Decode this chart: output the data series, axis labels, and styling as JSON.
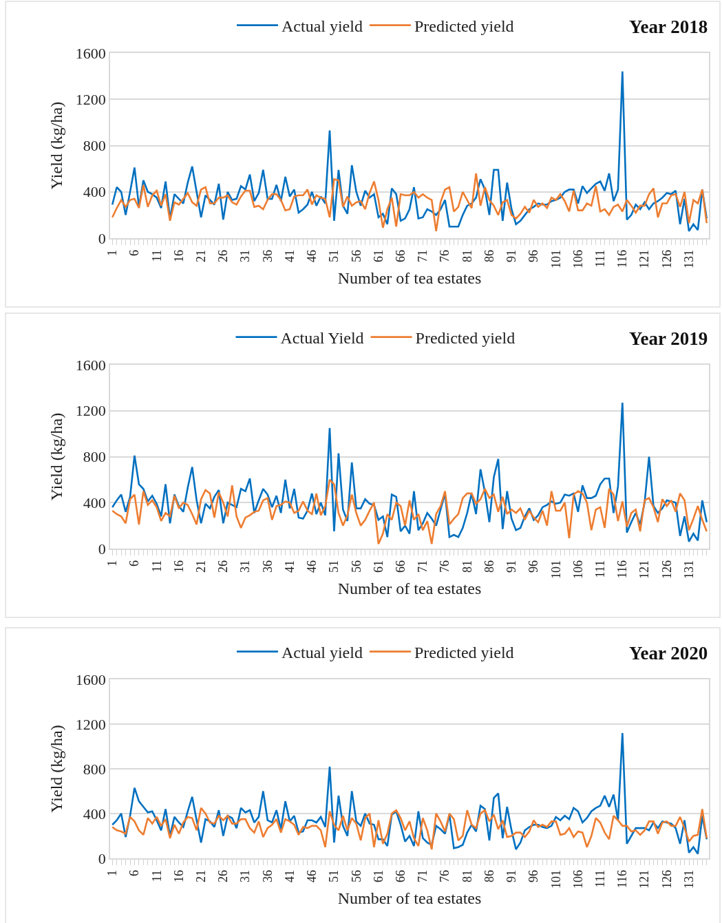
{
  "chart_data": [
    {
      "type": "line",
      "title": "Year 2018",
      "xlabel": "Number of tea estates",
      "ylabel": "Yield (kg/ha)",
      "ylim": [
        0,
        1600
      ],
      "yticks": [
        0,
        400,
        800,
        1200,
        1600
      ],
      "grid": "y",
      "legend": "top",
      "categories": [
        "1",
        null,
        null,
        null,
        null,
        "6",
        null,
        null,
        null,
        null,
        "11",
        null,
        null,
        null,
        null,
        "16",
        null,
        null,
        null,
        null,
        "21",
        null,
        null,
        null,
        null,
        "26",
        null,
        null,
        null,
        null,
        "31",
        null,
        null,
        null,
        null,
        "36",
        null,
        null,
        null,
        null,
        "41",
        null,
        null,
        null,
        null,
        "46",
        null,
        null,
        null,
        null,
        "51",
        null,
        null,
        null,
        null,
        "56",
        null,
        null,
        null,
        null,
        "61",
        null,
        null,
        null,
        null,
        "66",
        null,
        null,
        null,
        null,
        "71",
        null,
        null,
        null,
        null,
        "76",
        null,
        null,
        null,
        null,
        "81",
        null,
        null,
        null,
        null,
        "86",
        null,
        null,
        null,
        null,
        "91",
        null,
        null,
        null,
        null,
        "96",
        null,
        null,
        null,
        null,
        "101",
        null,
        null,
        null,
        null,
        "106",
        null,
        null,
        null,
        null,
        "111",
        null,
        null,
        null,
        null,
        "116",
        null,
        null,
        null,
        null,
        "121",
        null,
        null,
        null,
        null,
        "126",
        null,
        null,
        null,
        null,
        "131",
        null,
        null,
        null,
        null
      ],
      "series": [
        {
          "name": "Actual yield",
          "color": "#0070c0",
          "values": [
            290,
            440,
            400,
            200,
            400,
            610,
            270,
            500,
            400,
            380,
            350,
            260,
            490,
            170,
            380,
            340,
            300,
            480,
            620,
            400,
            180,
            370,
            330,
            290,
            470,
            160,
            400,
            330,
            340,
            450,
            420,
            550,
            320,
            390,
            590,
            340,
            340,
            460,
            320,
            530,
            360,
            420,
            220,
            250,
            290,
            400,
            280,
            360,
            300,
            930,
            150,
            590,
            280,
            210,
            630,
            400,
            280,
            410,
            350,
            380,
            180,
            210,
            120,
            430,
            380,
            150,
            170,
            250,
            440,
            170,
            180,
            250,
            230,
            200,
            250,
            330,
            100,
            100,
            100,
            200,
            280,
            300,
            350,
            510,
            420,
            200,
            590,
            590,
            150,
            480,
            250,
            120,
            150,
            200,
            250,
            270,
            300,
            290,
            290,
            320,
            330,
            350,
            400,
            420,
            420,
            300,
            450,
            390,
            430,
            470,
            490,
            410,
            560,
            320,
            420,
            1440,
            160,
            200,
            290,
            250,
            310,
            250,
            300,
            320,
            350,
            390,
            380,
            410,
            120,
            340,
            60,
            120,
            70,
            420,
            170
          ]
        },
        {
          "name": "Predicted yield",
          "color": "#ed7d31",
          "values": [
            180,
            260,
            330,
            270,
            330,
            340,
            260,
            460,
            270,
            370,
            410,
            280,
            380,
            150,
            310,
            290,
            340,
            390,
            310,
            280,
            420,
            440,
            300,
            300,
            350,
            350,
            370,
            310,
            290,
            360,
            410,
            410,
            270,
            280,
            250,
            330,
            380,
            380,
            330,
            240,
            250,
            360,
            370,
            370,
            420,
            290,
            370,
            350,
            340,
            180,
            510,
            500,
            270,
            360,
            280,
            310,
            320,
            250,
            390,
            490,
            330,
            90,
            250,
            350,
            100,
            380,
            370,
            370,
            400,
            350,
            380,
            350,
            330,
            60,
            310,
            420,
            440,
            230,
            270,
            400,
            330,
            260,
            560,
            280,
            440,
            330,
            280,
            200,
            310,
            330,
            200,
            170,
            210,
            270,
            220,
            330,
            270,
            300,
            260,
            350,
            330,
            380,
            320,
            230,
            410,
            240,
            240,
            300,
            280,
            450,
            230,
            250,
            200,
            270,
            290,
            230,
            330,
            280,
            220,
            280,
            280,
            380,
            430,
            180,
            300,
            300,
            370,
            380,
            270,
            400,
            130,
            330,
            300,
            420,
            130
          ]
        }
      ]
    },
    {
      "type": "line",
      "title": "Year 2019",
      "xlabel": "Number of tea estates",
      "ylabel": "Yield (kg/ha)",
      "ylim": [
        0,
        1600
      ],
      "yticks": [
        0,
        400,
        800,
        1200,
        1600
      ],
      "grid": "y",
      "legend": "top",
      "categories": [
        "1",
        null,
        null,
        null,
        null,
        "6",
        null,
        null,
        null,
        null,
        "11",
        null,
        null,
        null,
        null,
        "16",
        null,
        null,
        null,
        null,
        "21",
        null,
        null,
        null,
        null,
        "26",
        null,
        null,
        null,
        null,
        "31",
        null,
        null,
        null,
        null,
        "36",
        null,
        null,
        null,
        null,
        "41",
        null,
        null,
        null,
        null,
        "46",
        null,
        null,
        null,
        null,
        "51",
        null,
        null,
        null,
        null,
        "56",
        null,
        null,
        null,
        null,
        "61",
        null,
        null,
        null,
        null,
        "66",
        null,
        null,
        null,
        null,
        "71",
        null,
        null,
        null,
        null,
        "76",
        null,
        null,
        null,
        null,
        "81",
        null,
        null,
        null,
        null,
        "86",
        null,
        null,
        null,
        null,
        "91",
        null,
        null,
        null,
        null,
        "96",
        null,
        null,
        null,
        null,
        "101",
        null,
        null,
        null,
        null,
        "106",
        null,
        null,
        null,
        null,
        "111",
        null,
        null,
        null,
        null,
        "116",
        null,
        null,
        null,
        null,
        "121",
        null,
        null,
        null,
        null,
        "126",
        null,
        null,
        null,
        null,
        "131",
        null,
        null,
        null,
        null
      ],
      "series": [
        {
          "name": "Actual Yield",
          "color": "#0070c0",
          "values": [
            360,
            420,
            470,
            320,
            450,
            810,
            560,
            520,
            410,
            460,
            390,
            280,
            560,
            220,
            470,
            370,
            320,
            530,
            710,
            420,
            220,
            390,
            350,
            450,
            510,
            220,
            400,
            380,
            360,
            520,
            500,
            610,
            310,
            420,
            520,
            470,
            360,
            460,
            310,
            600,
            350,
            520,
            270,
            260,
            330,
            480,
            300,
            400,
            290,
            1050,
            150,
            830,
            340,
            240,
            750,
            350,
            350,
            430,
            390,
            380,
            250,
            280,
            100,
            470,
            450,
            150,
            200,
            130,
            500,
            160,
            220,
            310,
            260,
            200,
            340,
            480,
            100,
            120,
            100,
            180,
            310,
            480,
            300,
            690,
            490,
            230,
            620,
            780,
            170,
            500,
            260,
            160,
            180,
            280,
            350,
            250,
            290,
            360,
            380,
            410,
            390,
            400,
            470,
            460,
            480,
            320,
            550,
            440,
            440,
            460,
            560,
            610,
            610,
            310,
            540,
            1270,
            140,
            230,
            310,
            210,
            400,
            800,
            370,
            310,
            350,
            420,
            410,
            400,
            110,
            280,
            60,
            130,
            70,
            420,
            230
          ]
        },
        {
          "name": "Predicted yield",
          "color": "#ed7d31",
          "values": [
            330,
            300,
            280,
            220,
            430,
            470,
            210,
            500,
            380,
            420,
            360,
            240,
            310,
            280,
            460,
            350,
            400,
            380,
            300,
            210,
            430,
            510,
            480,
            270,
            490,
            400,
            280,
            550,
            280,
            180,
            270,
            290,
            320,
            330,
            420,
            440,
            250,
            370,
            380,
            410,
            400,
            310,
            330,
            410,
            330,
            300,
            480,
            290,
            370,
            600,
            560,
            310,
            200,
            290,
            470,
            310,
            200,
            250,
            330,
            400,
            40,
            130,
            300,
            250,
            400,
            370,
            200,
            420,
            250,
            300,
            160,
            240,
            40,
            300,
            370,
            500,
            210,
            260,
            300,
            440,
            480,
            480,
            390,
            430,
            520,
            440,
            470,
            320,
            450,
            300,
            340,
            310,
            350,
            250,
            330,
            270,
            230,
            330,
            200,
            500,
            330,
            330,
            400,
            90,
            470,
            500,
            480,
            400,
            160,
            340,
            360,
            180,
            520,
            470,
            240,
            410,
            190,
            310,
            340,
            150,
            420,
            440,
            360,
            230,
            430,
            370,
            420,
            320,
            480,
            420,
            160,
            260,
            370,
            250,
            150
          ]
        }
      ]
    },
    {
      "type": "line",
      "title": "Year 2020",
      "xlabel": "Number of tea estates",
      "ylabel": "Yield (kg/ha)",
      "ylim": [
        0,
        1600
      ],
      "yticks": [
        0,
        400,
        800,
        1200,
        1600
      ],
      "grid": "y",
      "legend": "top",
      "categories": [
        "1",
        null,
        null,
        null,
        null,
        "6",
        null,
        null,
        null,
        null,
        "11",
        null,
        null,
        null,
        null,
        "16",
        null,
        null,
        null,
        null,
        "21",
        null,
        null,
        null,
        null,
        "26",
        null,
        null,
        null,
        null,
        "31",
        null,
        null,
        null,
        null,
        "36",
        null,
        null,
        null,
        null,
        "41",
        null,
        null,
        null,
        null,
        "46",
        null,
        null,
        null,
        null,
        "51",
        null,
        null,
        null,
        null,
        "56",
        null,
        null,
        null,
        null,
        "61",
        null,
        null,
        null,
        null,
        "66",
        null,
        null,
        null,
        null,
        "71",
        null,
        null,
        null,
        null,
        "76",
        null,
        null,
        null,
        null,
        "81",
        null,
        null,
        null,
        null,
        "86",
        null,
        null,
        null,
        null,
        "91",
        null,
        null,
        null,
        null,
        "96",
        null,
        null,
        null,
        null,
        "101",
        null,
        null,
        null,
        null,
        "106",
        null,
        null,
        null,
        null,
        "111",
        null,
        null,
        null,
        null,
        "116",
        null,
        null,
        null,
        null,
        "121",
        null,
        null,
        null,
        null,
        "126",
        null,
        null,
        null,
        null,
        "131",
        null,
        null,
        null,
        null
      ],
      "series": [
        {
          "name": "Actual yield",
          "color": "#0070c0",
          "values": [
            300,
            340,
            400,
            190,
            380,
            630,
            510,
            460,
            410,
            420,
            340,
            250,
            440,
            200,
            370,
            320,
            280,
            420,
            550,
            340,
            140,
            350,
            330,
            280,
            430,
            200,
            380,
            360,
            270,
            450,
            410,
            430,
            320,
            370,
            600,
            340,
            320,
            430,
            260,
            510,
            330,
            380,
            230,
            240,
            340,
            340,
            320,
            370,
            280,
            820,
            140,
            560,
            290,
            200,
            600,
            330,
            290,
            400,
            310,
            300,
            170,
            170,
            110,
            390,
            420,
            300,
            150,
            200,
            110,
            420,
            180,
            140,
            120,
            290,
            260,
            220,
            390,
            90,
            100,
            120,
            230,
            300,
            240,
            470,
            440,
            160,
            540,
            580,
            180,
            460,
            250,
            80,
            140,
            250,
            280,
            300,
            300,
            280,
            270,
            290,
            370,
            340,
            380,
            350,
            450,
            420,
            320,
            360,
            420,
            450,
            470,
            560,
            460,
            570,
            340,
            1120,
            130,
            200,
            270,
            270,
            270,
            250,
            320,
            270,
            330,
            320,
            310,
            270,
            130,
            340,
            50,
            100,
            40,
            380,
            170
          ]
        },
        {
          "name": "Predicted yield",
          "color": "#ed7d31",
          "values": [
            280,
            250,
            240,
            220,
            370,
            330,
            250,
            210,
            360,
            310,
            370,
            290,
            350,
            180,
            300,
            220,
            320,
            370,
            360,
            250,
            450,
            400,
            320,
            310,
            380,
            340,
            380,
            310,
            310,
            350,
            350,
            270,
            230,
            330,
            190,
            270,
            300,
            350,
            230,
            350,
            330,
            300,
            210,
            280,
            270,
            290,
            290,
            250,
            100,
            420,
            300,
            250,
            380,
            250,
            360,
            310,
            160,
            360,
            400,
            100,
            340,
            130,
            220,
            400,
            430,
            360,
            250,
            330,
            180,
            110,
            360,
            250,
            80,
            400,
            330,
            240,
            400,
            350,
            160,
            200,
            430,
            300,
            270,
            400,
            430,
            330,
            390,
            260,
            340,
            190,
            200,
            230,
            230,
            190,
            240,
            340,
            280,
            300,
            280,
            330,
            330,
            210,
            220,
            270,
            190,
            240,
            230,
            100,
            200,
            360,
            320,
            230,
            170,
            380,
            340,
            290,
            290,
            240,
            250,
            210,
            250,
            330,
            330,
            220,
            320,
            330,
            290,
            290,
            370,
            270,
            150,
            200,
            210,
            440,
            180
          ]
        }
      ]
    }
  ]
}
